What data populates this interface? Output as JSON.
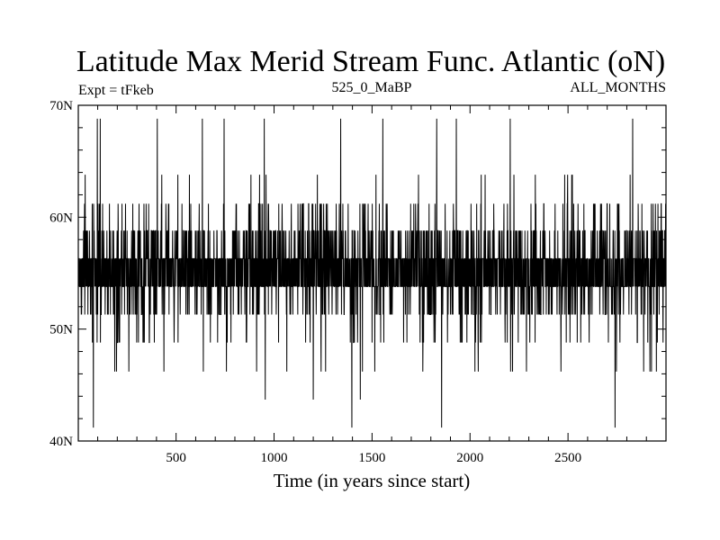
{
  "chart_data": {
    "type": "line",
    "title": "Latitude Max Merid Stream Func. Atlantic (oN)",
    "subtitle_left": "Expt = tFkeb",
    "subtitle_center": "525_0_MaBP",
    "subtitle_right": "ALL_MONTHS",
    "xlabel": "Time (in years since start)",
    "ylabel": "",
    "xlim": [
      1,
      3000
    ],
    "ylim": [
      40,
      70
    ],
    "xticks": [
      500,
      1000,
      1500,
      2000,
      2500
    ],
    "xtick_labels": [
      "500",
      "1000",
      "1500",
      "2000",
      "2500"
    ],
    "yticks": [
      40,
      50,
      60,
      70
    ],
    "ytick_labels": [
      "40N",
      "50N",
      "60N",
      "70N"
    ],
    "grid": false,
    "line_color": "#000000",
    "levels": [
      41.2,
      43.7,
      46.2,
      48.8,
      51.3,
      53.8,
      56.3,
      58.8,
      61.2,
      63.8,
      66.2,
      68.8
    ],
    "typical_band": [
      53.8,
      56.3
    ],
    "extreme_samples": [
      {
        "x": 78,
        "y": 41.2
      },
      {
        "x": 1397,
        "y": 41.2
      },
      {
        "x": 1855,
        "y": 41.2
      },
      {
        "x": 2740,
        "y": 41.2
      },
      {
        "x": 955,
        "y": 43.7
      },
      {
        "x": 1200,
        "y": 43.7
      },
      {
        "x": 1440,
        "y": 43.7
      },
      {
        "x": 98,
        "y": 68.8
      },
      {
        "x": 113,
        "y": 68.8
      },
      {
        "x": 404,
        "y": 68.8
      },
      {
        "x": 634,
        "y": 68.8
      },
      {
        "x": 745,
        "y": 68.8
      },
      {
        "x": 950,
        "y": 68.8
      },
      {
        "x": 1340,
        "y": 68.8
      },
      {
        "x": 1555,
        "y": 68.8
      },
      {
        "x": 1830,
        "y": 68.8
      },
      {
        "x": 1930,
        "y": 68.8
      },
      {
        "x": 2205,
        "y": 68.8
      },
      {
        "x": 2830,
        "y": 68.8
      }
    ]
  }
}
